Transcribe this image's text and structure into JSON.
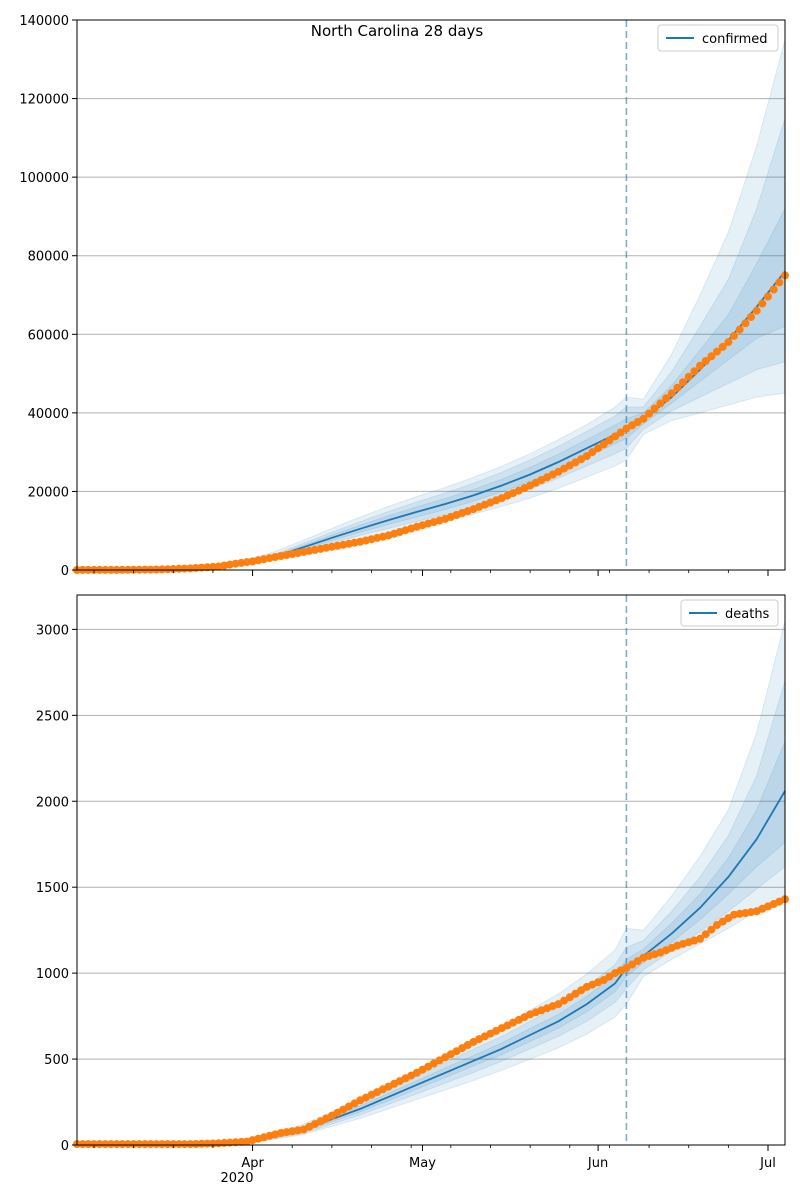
{
  "figure_title": "North Carolina 28 days",
  "colors": {
    "model": "#1f77b4",
    "observed": "#ff7f0e",
    "band": "#1f77b4",
    "grid": "#b0b0b0",
    "vline": "#1f77b4"
  },
  "x_axis": {
    "ticks": [
      {
        "label": "Apr",
        "day": 31
      },
      {
        "label": "May",
        "day": 61
      },
      {
        "label": "Jun",
        "day": 92
      },
      {
        "label": "Jul",
        "day": 122
      }
    ],
    "year_label": "2020",
    "range_days": [
      0,
      125
    ],
    "forecast_start_day": 97
  },
  "chart_data": [
    {
      "type": "line",
      "title": "North Carolina 28 days",
      "xlabel": "",
      "ylabel": "",
      "ylim": [
        0,
        140000
      ],
      "yticks": [
        {
          "value": 0,
          "label": "0"
        },
        {
          "value": 20000,
          "label": "20000"
        },
        {
          "value": 40000,
          "label": "40000"
        },
        {
          "value": 60000,
          "label": "60000"
        },
        {
          "value": 80000,
          "label": "80000"
        },
        {
          "value": 100000,
          "label": "100000"
        },
        {
          "value": 120000,
          "label": "120000"
        },
        {
          "value": 140000,
          "label": "140000"
        }
      ],
      "grid": "horizontal",
      "legend": {
        "position": "top-right",
        "entries": [
          "confirmed"
        ]
      },
      "model": {
        "name": "confirmed",
        "x": [
          0,
          10,
          20,
          25,
          30,
          35,
          40,
          45,
          50,
          55,
          60,
          65,
          70,
          75,
          80,
          85,
          90,
          95,
          97,
          100,
          105,
          110,
          115,
          120,
          125
        ],
        "y": [
          0,
          50,
          300,
          900,
          2000,
          3500,
          5800,
          8200,
          10500,
          12700,
          14800,
          16800,
          19000,
          21500,
          24300,
          27500,
          31000,
          34500,
          36000,
          38500,
          44000,
          51000,
          58500,
          67000,
          76000
        ]
      },
      "bands": [
        {
          "low": [
            0,
            40,
            250,
            700,
            1500,
            2600,
            4300,
            6100,
            7800,
            9400,
            11000,
            12500,
            14200,
            16200,
            18300,
            20800,
            23600,
            26500,
            28000,
            34500,
            38000,
            40000,
            42000,
            44000,
            45000
          ],
          "high": [
            0,
            60,
            400,
            1200,
            2700,
            4700,
            7600,
            10600,
            13500,
            16200,
            18700,
            21000,
            23600,
            26400,
            29600,
            33200,
            37000,
            41500,
            44000,
            43500,
            55000,
            70000,
            86000,
            108000,
            135000
          ]
        },
        {
          "low": [
            0,
            44,
            270,
            780,
            1700,
            2950,
            4850,
            6900,
            8800,
            10600,
            12400,
            14100,
            16000,
            18200,
            20600,
            23400,
            26500,
            29600,
            31000,
            35800,
            40500,
            44000,
            47500,
            51000,
            53000
          ],
          "high": [
            0,
            56,
            350,
            1050,
            2350,
            4100,
            6800,
            9600,
            12300,
            14900,
            17300,
            19600,
            22100,
            24900,
            28000,
            31500,
            35300,
            39200,
            41500,
            41500,
            50500,
            62000,
            74000,
            92000,
            115000
          ]
        },
        {
          "low": [
            0,
            47,
            285,
            840,
            1850,
            3200,
            5300,
            7500,
            9600,
            11600,
            13500,
            15400,
            17500,
            19900,
            22500,
            25500,
            28800,
            32100,
            33500,
            37200,
            42500,
            48000,
            53500,
            59000,
            62000
          ],
          "high": [
            0,
            53,
            320,
            960,
            2150,
            3800,
            6300,
            8900,
            11400,
            13800,
            16100,
            18200,
            20500,
            23100,
            26100,
            29500,
            33200,
            36900,
            38500,
            40000,
            47000,
            56000,
            65000,
            78000,
            92000
          ]
        }
      ],
      "observed": {
        "x": [
          0,
          10,
          15,
          20,
          25,
          28,
          31,
          35,
          40,
          45,
          50,
          55,
          60,
          65,
          70,
          75,
          80,
          85,
          90,
          95,
          97,
          100,
          105,
          110,
          115,
          120,
          125
        ],
        "y": [
          10,
          50,
          150,
          400,
          900,
          1600,
          2200,
          3300,
          4600,
          5900,
          7200,
          8800,
          11000,
          13000,
          15500,
          18300,
          21500,
          25000,
          29000,
          34000,
          36000,
          38500,
          45000,
          52000,
          58000,
          66000,
          75000
        ]
      }
    },
    {
      "type": "line",
      "title": "",
      "xlabel": "",
      "ylabel": "",
      "ylim": [
        0,
        3200
      ],
      "yticks": [
        {
          "value": 0,
          "label": "0"
        },
        {
          "value": 500,
          "label": "500"
        },
        {
          "value": 1000,
          "label": "1000"
        },
        {
          "value": 1500,
          "label": "1500"
        },
        {
          "value": 2000,
          "label": "2000"
        },
        {
          "value": 2500,
          "label": "2500"
        },
        {
          "value": 3000,
          "label": "3000"
        }
      ],
      "grid": "horizontal",
      "legend": {
        "position": "top-right",
        "entries": [
          "deaths"
        ]
      },
      "model": {
        "name": "deaths",
        "x": [
          0,
          20,
          25,
          30,
          35,
          40,
          45,
          50,
          55,
          60,
          65,
          70,
          75,
          80,
          85,
          90,
          95,
          97,
          100,
          105,
          110,
          115,
          120,
          125
        ],
        "y": [
          0,
          2,
          5,
          20,
          50,
          90,
          150,
          210,
          280,
          350,
          420,
          490,
          560,
          640,
          720,
          820,
          940,
          1030,
          1100,
          1230,
          1380,
          1560,
          1780,
          2060
        ]
      },
      "bands": [
        {
          "low": [
            0,
            1,
            3,
            12,
            32,
            62,
            108,
            155,
            210,
            265,
            320,
            375,
            435,
            500,
            565,
            645,
            745,
            820,
            980,
            1080,
            1170,
            1260,
            1360,
            1450
          ],
          "high": [
            0,
            3,
            8,
            28,
            70,
            122,
            195,
            268,
            350,
            435,
            520,
            605,
            690,
            785,
            880,
            995,
            1135,
            1260,
            1250,
            1450,
            1680,
            1950,
            2400,
            3050
          ]
        },
        {
          "low": [
            0,
            1,
            4,
            15,
            38,
            70,
            122,
            175,
            236,
            298,
            360,
            422,
            488,
            560,
            632,
            720,
            830,
            910,
            1020,
            1130,
            1240,
            1360,
            1490,
            1620
          ],
          "high": [
            0,
            3,
            7,
            25,
            62,
            110,
            178,
            245,
            324,
            402,
            480,
            558,
            632,
            720,
            808,
            920,
            1050,
            1150,
            1190,
            1360,
            1560,
            1800,
            2150,
            2700
          ]
        },
        {
          "low": [
            0,
            2,
            4,
            17,
            44,
            80,
            136,
            192,
            258,
            326,
            392,
            460,
            526,
            602,
            680,
            775,
            892,
            980,
            1060,
            1180,
            1310,
            1460,
            1620,
            1760
          ],
          "high": [
            0,
            2,
            6,
            23,
            56,
            100,
            164,
            228,
            302,
            374,
            448,
            520,
            594,
            678,
            760,
            865,
            988,
            1080,
            1140,
            1290,
            1460,
            1670,
            1950,
            2350
          ]
        }
      ],
      "observed": {
        "x": [
          0,
          20,
          25,
          30,
          33,
          36,
          40,
          45,
          50,
          55,
          60,
          65,
          70,
          75,
          80,
          85,
          90,
          93,
          95,
          97,
          100,
          103,
          106,
          110,
          113,
          116,
          120,
          125
        ],
        "y": [
          5,
          5,
          10,
          20,
          45,
          70,
          90,
          170,
          260,
          340,
          420,
          510,
          600,
          680,
          760,
          820,
          920,
          960,
          1000,
          1030,
          1090,
          1120,
          1160,
          1200,
          1280,
          1340,
          1360,
          1430
        ]
      }
    }
  ]
}
